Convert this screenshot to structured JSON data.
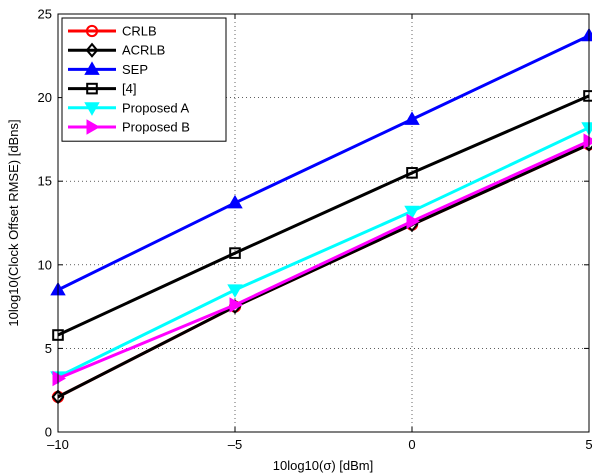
{
  "chart_data": {
    "type": "line",
    "xlabel": "10log10(σ) [dBm]",
    "ylabel": "10log10(Clock Offset RMSE) [dBns]",
    "xlim": [
      -10,
      5
    ],
    "ylim": [
      0,
      25
    ],
    "x_ticks": [
      -10,
      -5,
      0,
      5
    ],
    "y_ticks": [
      0,
      5,
      10,
      15,
      20,
      25
    ],
    "x_tick_labels": [
      "–10",
      "–5",
      "0",
      "5"
    ],
    "y_tick_labels": [
      "0",
      "5",
      "10",
      "15",
      "20",
      "25"
    ],
    "grid": true,
    "legend_position": "top-left",
    "x": [
      -10,
      -5,
      0,
      5
    ],
    "series": [
      {
        "name": "CRLB",
        "values": [
          2.1,
          7.5,
          12.4,
          17.2
        ],
        "color": "#ff0000",
        "marker": "circle"
      },
      {
        "name": "ACRLB",
        "values": [
          2.1,
          7.5,
          12.4,
          17.2
        ],
        "color": "#000000",
        "marker": "diamond"
      },
      {
        "name": "SEP",
        "values": [
          8.5,
          13.7,
          18.7,
          23.7
        ],
        "color": "#0000ff",
        "marker": "triangle-up"
      },
      {
        "name": "[4]",
        "values": [
          5.8,
          10.7,
          15.5,
          20.1
        ],
        "color": "#000000",
        "marker": "square"
      },
      {
        "name": "Proposed A",
        "values": [
          3.3,
          8.5,
          13.2,
          18.2
        ],
        "color": "#00ffff",
        "marker": "triangle-down"
      },
      {
        "name": "Proposed B",
        "values": [
          3.2,
          7.6,
          12.6,
          17.4
        ],
        "color": "#ff00ff",
        "marker": "triangle-right"
      }
    ]
  }
}
